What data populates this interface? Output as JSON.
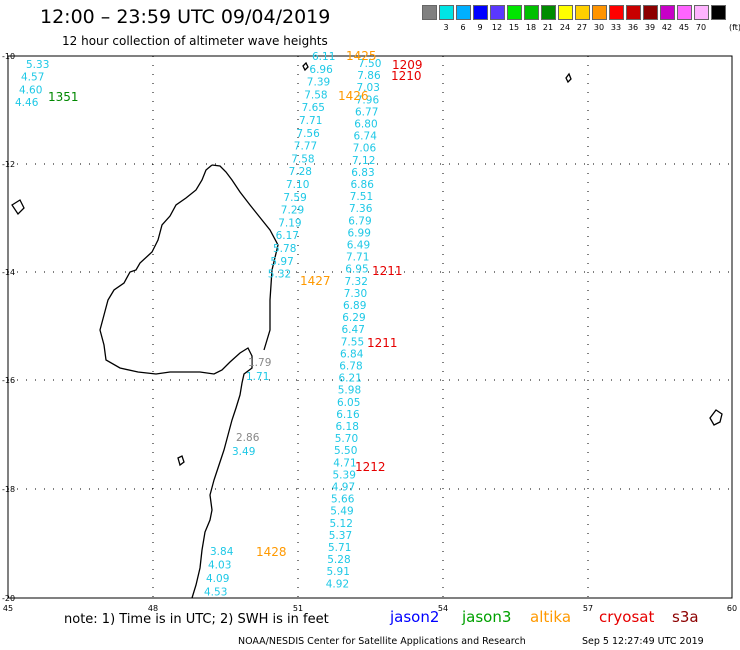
{
  "title": "12:00 – 23:59 UTC 09/04/2019",
  "subtitle": "12 hour collection of altimeter wave heights",
  "legend": {
    "unit": "(ft)",
    "items": [
      {
        "color": "#808080",
        "label": ""
      },
      {
        "color": "#00e5e5",
        "label": "3"
      },
      {
        "color": "#00b0ff",
        "label": "6"
      },
      {
        "color": "#0000ff",
        "label": "9"
      },
      {
        "color": "#5a37ff",
        "label": "12"
      },
      {
        "color": "#00e600",
        "label": "15"
      },
      {
        "color": "#00c000",
        "label": "18"
      },
      {
        "color": "#008c00",
        "label": "21"
      },
      {
        "color": "#ffff00",
        "label": "24"
      },
      {
        "color": "#ffd000",
        "label": "27"
      },
      {
        "color": "#ff9400",
        "label": "30"
      },
      {
        "color": "#ff0000",
        "label": "33"
      },
      {
        "color": "#c80000",
        "label": "36"
      },
      {
        "color": "#8c0000",
        "label": "39"
      },
      {
        "color": "#c800c8",
        "label": "42"
      },
      {
        "color": "#ff64ff",
        "label": "45"
      },
      {
        "color": "#ffb4ff",
        "label": "70"
      },
      {
        "color": "#000000",
        "label": ""
      }
    ]
  },
  "axes": {
    "lat_labels": [
      "-10",
      "-12",
      "-14",
      "-16",
      "-18",
      "-20"
    ],
    "lon_labels": [
      "45",
      "48",
      "51",
      "54",
      "57",
      "60"
    ]
  },
  "colors": {
    "cyan": "#1ec8e6",
    "green": "#008800",
    "orange": "#ff9900",
    "red": "#e60000",
    "gray": "#888888",
    "blue": "#0000ff"
  },
  "track_left": [
    "5.33",
    "4.57",
    "4.60",
    "4.46"
  ],
  "track_a": [
    "6.11",
    "6.96",
    "7.39",
    "7.58",
    "7.65",
    "7.71",
    "7.56",
    "7.77",
    "7.58",
    "7.28",
    "7.10",
    "7.59",
    "7.29",
    "7.19",
    "6.17",
    "5.78",
    "5.97",
    "5.32"
  ],
  "track_b": [
    "7.50",
    "7.86",
    "7.03",
    "7.96",
    "6.77",
    "6.80",
    "6.74",
    "7.06",
    "7.12",
    "6.83",
    "6.86",
    "7.51",
    "7.36",
    "6.79",
    "6.99",
    "6.49",
    "7.71",
    "6.95",
    "7.32",
    "7.30",
    "6.89",
    "6.29",
    "6.47",
    "7.55",
    "6.84",
    "6.78",
    "6.21",
    "5.98",
    "6.05",
    "6.16",
    "6.18",
    "5.70",
    "5.50",
    "4.71",
    "5.39",
    "4.97",
    "5.66",
    "5.49",
    "5.12",
    "5.37",
    "5.71",
    "5.28",
    "5.91",
    "4.92"
  ],
  "track_c_gray": [
    "1.79",
    "2.86"
  ],
  "track_c_cyan": [
    "1.71",
    "3.49"
  ],
  "track_d": [
    "3.84",
    "4.03",
    "4.09",
    "4.53"
  ],
  "times": {
    "t1351": "1351",
    "t1425": "1425",
    "t1426": "1426",
    "t1427": "1427",
    "t1428": "1428",
    "t1209": "1209",
    "t1210": "1210",
    "t1211a": "1211",
    "t1211b": "1211",
    "t1212": "1212"
  },
  "footer": {
    "note": "note:  1) Time is in UTC;  2) SWH is in feet",
    "missions": [
      {
        "name": "jason2",
        "color": "#0000ff"
      },
      {
        "name": "jason3",
        "color": "#00a000"
      },
      {
        "name": "altika",
        "color": "#ff9900"
      },
      {
        "name": "cryosat",
        "color": "#e60000"
      },
      {
        "name": "s3a",
        "color": "#8c0000"
      }
    ],
    "credit": "NOAA/NESDIS Center for Satellite Applications and Research",
    "timestamp": "Sep  5 12:27:49 UTC 2019"
  }
}
